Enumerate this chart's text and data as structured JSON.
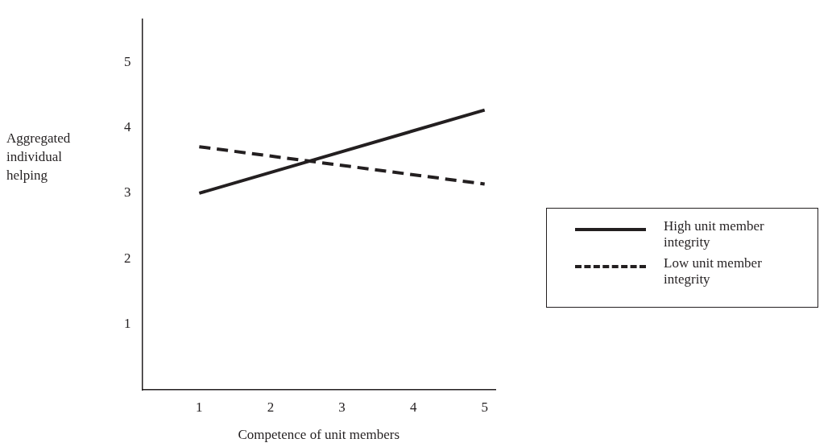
{
  "chart_data": {
    "type": "line",
    "xlabel": "Competence of unit members",
    "ylabel": "Aggregated individual helping",
    "x": [
      1,
      5
    ],
    "xlim": [
      0.2,
      5.15
    ],
    "xticks": [
      1,
      2,
      3,
      4,
      5
    ],
    "ylim": [
      0,
      5.65
    ],
    "yticks": [
      1,
      2,
      3,
      4,
      5
    ],
    "grid": false,
    "legend": "right",
    "marker": "none",
    "series": [
      {
        "name": "High unit member integrity",
        "color": "#231f20",
        "values": [
          3.0,
          4.27
        ],
        "line_style": "solid"
      },
      {
        "name": "Low unit member integrity",
        "color": "#231f20",
        "values": [
          3.71,
          3.14
        ],
        "line_style": "dashed"
      }
    ]
  }
}
